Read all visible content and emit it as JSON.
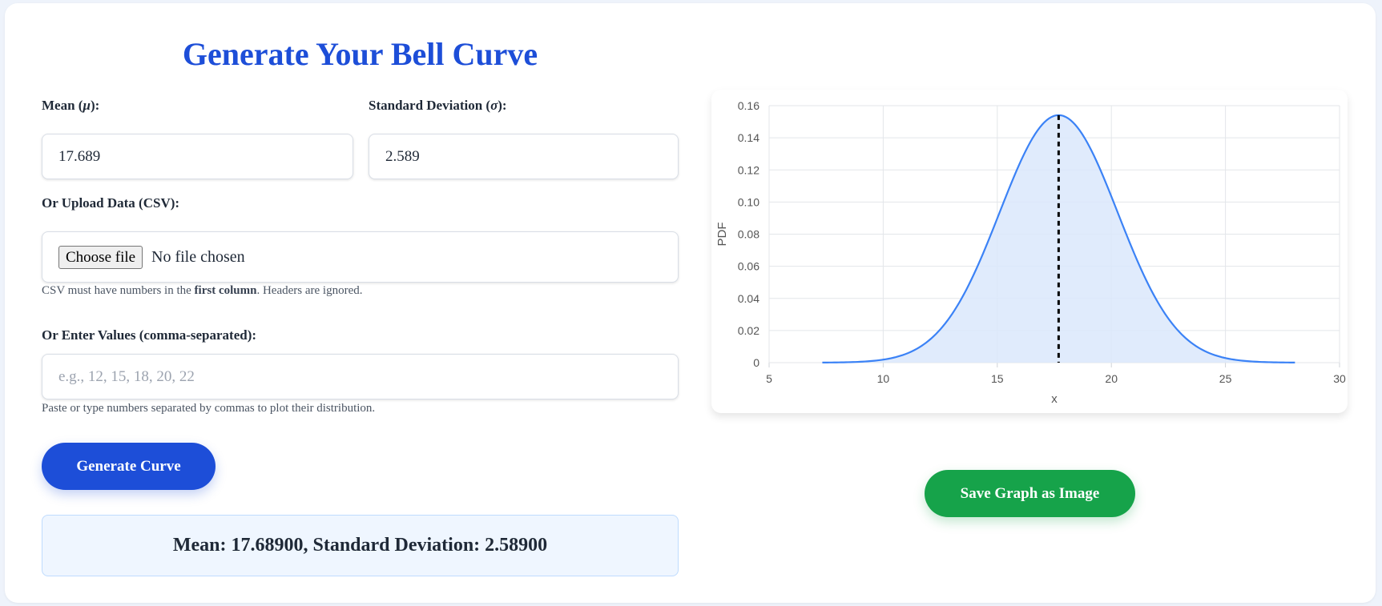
{
  "page": {
    "title": "Generate Your Bell Curve"
  },
  "form": {
    "mean_label_text": "Mean (",
    "mean_label_symbol": "μ",
    "mean_label_end": "):",
    "mean_value": "17.689",
    "sd_label_text": "Standard Deviation (",
    "sd_label_symbol": "σ",
    "sd_label_end": "):",
    "sd_value": "2.589",
    "upload_label": "Or Upload Data (CSV):",
    "choose_file_label": "Choose file",
    "no_file_text": "No file chosen",
    "csv_hint_prefix": "CSV must have numbers in the ",
    "csv_hint_bold": "first column",
    "csv_hint_suffix": ". Headers are ignored.",
    "values_label": "Or Enter Values (comma-separated):",
    "values_placeholder": "e.g., 12, 15, 18, 20, 22",
    "values_hint": "Paste or type numbers separated by commas to plot their distribution.",
    "generate_label": "Generate Curve"
  },
  "result": {
    "text": "Mean: 17.68900, Standard Deviation: 2.58900"
  },
  "actions": {
    "save_label": "Save Graph as Image"
  },
  "chart_data": {
    "type": "area",
    "distribution": "normal",
    "mean": 17.689,
    "std": 2.589,
    "x_range": [
      7.332,
      28.046
    ],
    "xlabel": "x",
    "ylabel": "PDF",
    "xlim": [
      5,
      30
    ],
    "ylim": [
      0,
      0.16
    ],
    "xticks": [
      "5",
      "10",
      "15",
      "20",
      "25",
      "30"
    ],
    "yticks": [
      "0",
      "0.02",
      "0.04",
      "0.06",
      "0.08",
      "0.10",
      "0.12",
      "0.14",
      "0.16"
    ],
    "mean_line": true,
    "grid": true,
    "line_color": "#3b82f6",
    "fill_color": "#dbe7fb",
    "mean_line_color": "#000000"
  }
}
